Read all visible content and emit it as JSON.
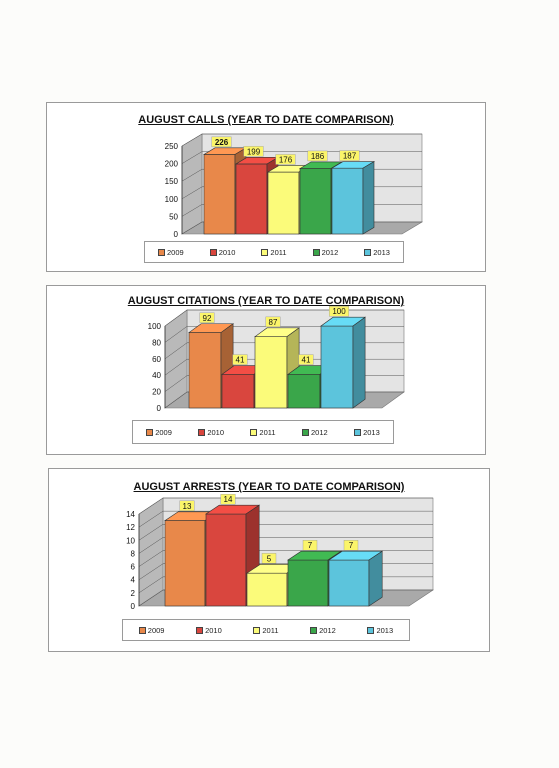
{
  "colors": {
    "2009": "#e8884a",
    "2010": "#d9463e",
    "2011": "#fbfb7a",
    "2012": "#3aa64a",
    "2013": "#5cc4dc"
  },
  "chart_data": [
    {
      "type": "bar",
      "title": "AUGUST CALLS (YEAR TO DATE COMPARISON)",
      "categories": [
        "2009",
        "2010",
        "2011",
        "2012",
        "2013"
      ],
      "values": [
        226,
        199,
        176,
        186,
        187
      ],
      "data_labels": [
        "226",
        "199",
        "176",
        "186",
        "187"
      ],
      "yticks": [
        "0",
        "50",
        "100",
        "150",
        "200",
        "250"
      ],
      "ylim": [
        0,
        250
      ],
      "legend": [
        "2009",
        "2010",
        "2011",
        "2012",
        "2013"
      ],
      "legend_position": "bottom",
      "grid": true,
      "style": "3d"
    },
    {
      "type": "bar",
      "title": "AUGUST CITATIONS (YEAR TO DATE COMPARISON)",
      "categories": [
        "2009",
        "2010",
        "2011",
        "2012",
        "2013"
      ],
      "values": [
        92,
        41,
        87,
        41,
        100
      ],
      "data_labels": [
        "92",
        "41",
        "87",
        "41",
        "100"
      ],
      "yticks": [
        "0",
        "20",
        "40",
        "60",
        "80",
        "100"
      ],
      "ylim": [
        0,
        100
      ],
      "legend": [
        "2009",
        "2010",
        "2011",
        "2012",
        "2013"
      ],
      "legend_position": "bottom",
      "grid": true,
      "style": "3d"
    },
    {
      "type": "bar",
      "title": "AUGUST ARRESTS (YEAR TO DATE COMPARISON)",
      "categories": [
        "2009",
        "2010",
        "2011",
        "2012",
        "2013"
      ],
      "values": [
        13,
        14,
        5,
        7,
        7
      ],
      "data_labels": [
        "13",
        "14",
        "5",
        "7",
        "7"
      ],
      "yticks": [
        "0",
        "2",
        "4",
        "6",
        "8",
        "10",
        "12",
        "14"
      ],
      "ylim": [
        0,
        14
      ],
      "legend": [
        "2009",
        "2010",
        "2011",
        "2012",
        "2013"
      ],
      "legend_position": "bottom",
      "grid": true,
      "style": "3d"
    }
  ]
}
